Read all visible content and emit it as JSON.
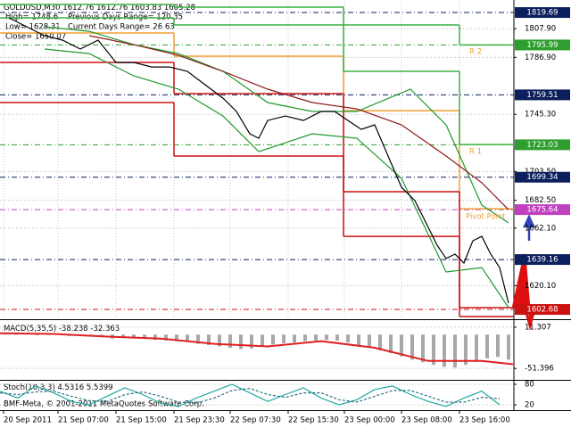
{
  "chart_data": [
    {
      "type": "line",
      "title": "GOLDUSD,M30",
      "ohlc": [
        1612.76,
        1612.76,
        1603.83,
        1605.28
      ],
      "info": [
        "High= 1748.6",
        "Previous Days Range= 120.35",
        "Low= 1628.31",
        "Current Days Range= 26.63",
        "Close= 1650.07"
      ],
      "xlim": [
        0,
        288
      ],
      "xticks": [
        {
          "value": 2,
          "label": "20 Sep 2011"
        },
        {
          "value": 32.5,
          "label": "21 Sep 07:00"
        },
        {
          "value": 65,
          "label": "21 Sep 15:00"
        },
        {
          "value": 97.5,
          "label": "21 Sep 23:30"
        },
        {
          "value": 129,
          "label": "22 Sep 07:30"
        },
        {
          "value": 161.5,
          "label": "22 Sep 15:30"
        },
        {
          "value": 193,
          "label": "23 Sep 00:00"
        },
        {
          "value": 225,
          "label": "23 Sep 08:00"
        },
        {
          "value": 257.5,
          "label": "23 Sep 16:00"
        }
      ],
      "ylim": [
        1596.2,
        1828.2
      ],
      "yticks": [
        {
          "value": 1807.9,
          "label": "1807.90"
        },
        {
          "value": 1786.9,
          "label": "1786.90"
        },
        {
          "value": 1745.3,
          "label": "1745.30"
        },
        {
          "value": 1703.5,
          "label": "1703.50"
        },
        {
          "value": 1682.5,
          "label": "1682.50"
        },
        {
          "value": 1662.1,
          "label": "1662.10"
        },
        {
          "value": 1620.1,
          "label": "1620.10"
        }
      ],
      "grid": true,
      "series": [
        {
          "color": "#1f9a2c",
          "x": [
            25,
            50,
            75,
            100,
            125,
            150,
            175,
            200,
            230,
            250,
            270,
            285
          ],
          "values": [
            1809.3,
            1806.0,
            1796.2,
            1789.7,
            1776.7,
            1753.9,
            1747.4,
            1747.4,
            1763.7,
            1737.6,
            1678.9,
            1665.9
          ]
        },
        {
          "color": "#1f9a2c",
          "x": [
            25,
            50,
            75,
            100,
            125,
            145,
            160,
            175,
            200,
            225,
            250,
            270,
            285
          ],
          "values": [
            1793.0,
            1789.7,
            1773.4,
            1763.7,
            1744.1,
            1718.0,
            1724.5,
            1731.1,
            1727.8,
            1698.5,
            1630.1,
            1633.3,
            1604.0
          ]
        },
        {
          "color": "#8b1a1a",
          "x": [
            50,
            75,
            100,
            125,
            150,
            175,
            200,
            225,
            250,
            270,
            285
          ],
          "values": [
            1802.8,
            1796.2,
            1788.4,
            1776.7,
            1763.7,
            1753.9,
            1749.3,
            1737.6,
            1714.8,
            1695.3,
            1675.6
          ]
        },
        {
          "color": "#000000",
          "x": [
            5,
            15,
            25,
            35,
            45,
            55,
            65,
            75,
            85,
            95,
            105,
            115,
            125,
            132.5,
            140,
            145,
            150,
            160,
            170,
            180,
            187.5,
            195,
            202.5,
            210,
            217.5,
            225,
            232.5,
            240,
            245,
            250,
            255,
            260,
            265,
            270,
            275,
            280,
            285
          ],
          "values": [
            1815.8,
            1809.3,
            1802.7,
            1799.5,
            1793.0,
            1799.5,
            1783.2,
            1783.2,
            1779.9,
            1779.9,
            1776.7,
            1766.9,
            1757.1,
            1747.4,
            1731.1,
            1727.8,
            1740.8,
            1744.1,
            1740.8,
            1747.4,
            1747.4,
            1740.8,
            1734.3,
            1737.6,
            1714.8,
            1692.0,
            1682.2,
            1662.7,
            1649.6,
            1639.9,
            1643.1,
            1636.6,
            1652.9,
            1656.1,
            1643.1,
            1633.3,
            1607.3
          ]
        }
      ],
      "pivots": {
        "bins": [
          0,
          97.5,
          192.5,
          257.5,
          288
        ],
        "lines": [
          {
            "color": "#f0a030",
            "values": [
              1804.7,
              1787.8,
              1748.0,
              1676.3
            ]
          },
          {
            "color": "#3cb043",
            "values": [
              1815.8,
              1810.6,
              1776.7,
              1723.2
            ]
          },
          {
            "color": "#3cb043",
            "values": [
              1825.6,
              1823.6,
              1810.6,
              1796.0
            ]
          },
          {
            "color": "#cc1111",
            "values": [
              1783.2,
              1760.4,
              1688.7,
              1604.0
            ]
          },
          {
            "color": "#cc1111",
            "values": [
              1753.9,
              1714.8,
              1656.1,
              1597.5
            ]
          }
        ]
      },
      "annotations": [
        "R 2",
        "R 1",
        "Pivot Point"
      ],
      "annotation_color": "#f0a030",
      "levels": [
        {
          "value": 1819.69,
          "color": "#0b1f5c"
        },
        {
          "value": 1795.99,
          "color": "#2e9e2e"
        },
        {
          "value": 1759.51,
          "color": "#0b1f5c"
        },
        {
          "value": 1723.03,
          "color": "#2e9e2e"
        },
        {
          "value": 1699.34,
          "color": "#0b1f5c"
        },
        {
          "value": 1675.64,
          "color": "#c040c0"
        },
        {
          "value": 1639.16,
          "color": "#0b1f5c"
        },
        {
          "value": 1602.68,
          "color": "#cc1111"
        }
      ]
    },
    {
      "type": "bar",
      "title": "MACD(5,35,5)",
      "readings": [
        -38.238,
        -32.363
      ],
      "xlim": [
        0,
        288
      ],
      "ylim": [
        -67.4,
        19.3
      ],
      "yticks": [
        11.307,
        -51.396
      ],
      "color": "#a8a8a8",
      "x": [
        3,
        9,
        15,
        21,
        27,
        33,
        39,
        45,
        51,
        57,
        63,
        69,
        75,
        81,
        87,
        93,
        99,
        105,
        111,
        117,
        123,
        129,
        135,
        141,
        147,
        153,
        159,
        165,
        171,
        177,
        183,
        189,
        195,
        201,
        207,
        213,
        219,
        225,
        231,
        237,
        243,
        249,
        255,
        261,
        267,
        273,
        279,
        285
      ],
      "values": [
        2,
        3,
        1,
        -1,
        0,
        1,
        -2,
        -1,
        -3,
        -4,
        -6,
        -5,
        -4,
        -6,
        -8,
        -9,
        -10,
        -11,
        -14,
        -16,
        -18,
        -20,
        -22,
        -21,
        -18,
        -15,
        -13,
        -12,
        -10,
        -9,
        -8,
        -9,
        -12,
        -16,
        -20,
        -24,
        -28,
        -33,
        -38,
        -42,
        -46,
        -49,
        -50,
        -46,
        -40,
        -36,
        -34,
        -38
      ],
      "signal": {
        "color": "#e02020",
        "x": [
          0,
          30,
          60,
          90,
          120,
          150,
          180,
          210,
          240,
          270,
          287.5
        ],
        "values": [
          2,
          1,
          -3,
          -6,
          -14,
          -18,
          -10,
          -20,
          -40,
          -40,
          -45
        ]
      }
    },
    {
      "type": "line",
      "title": "Stoch(10,3,3)",
      "readings": [
        4.5316,
        5.5399
      ],
      "footer": "BMF-Meta, © 2001-2011 MetaQuotes Software Corp.",
      "xlim": [
        0,
        288
      ],
      "ylim": [
        4.4,
        90.5
      ],
      "yticks": [
        80,
        20
      ],
      "series": [
        {
          "color": "#20a8a0",
          "dashed": false,
          "x": [
            0,
            10,
            20,
            30,
            40,
            50,
            60,
            70,
            80,
            90,
            100,
            110,
            120,
            130,
            140,
            150,
            160,
            170,
            180,
            190,
            200,
            210,
            220,
            230,
            240,
            250,
            260,
            270,
            280
          ],
          "values": [
            60,
            40,
            75,
            55,
            30,
            20,
            45,
            70,
            50,
            25,
            15,
            40,
            60,
            80,
            55,
            30,
            50,
            70,
            40,
            20,
            35,
            65,
            75,
            50,
            30,
            15,
            40,
            60,
            20
          ]
        },
        {
          "color": "#2a6f80",
          "dashed": true,
          "x": [
            0,
            10,
            20,
            30,
            40,
            50,
            60,
            70,
            80,
            90,
            100,
            110,
            120,
            130,
            140,
            150,
            160,
            170,
            180,
            190,
            200,
            210,
            220,
            230,
            240,
            250,
            260,
            270,
            280
          ],
          "values": [
            55,
            50,
            58,
            60,
            45,
            32,
            30,
            50,
            58,
            45,
            28,
            25,
            40,
            62,
            68,
            50,
            42,
            55,
            55,
            35,
            28,
            45,
            62,
            62,
            45,
            28,
            28,
            42,
            38
          ]
        }
      ]
    }
  ]
}
